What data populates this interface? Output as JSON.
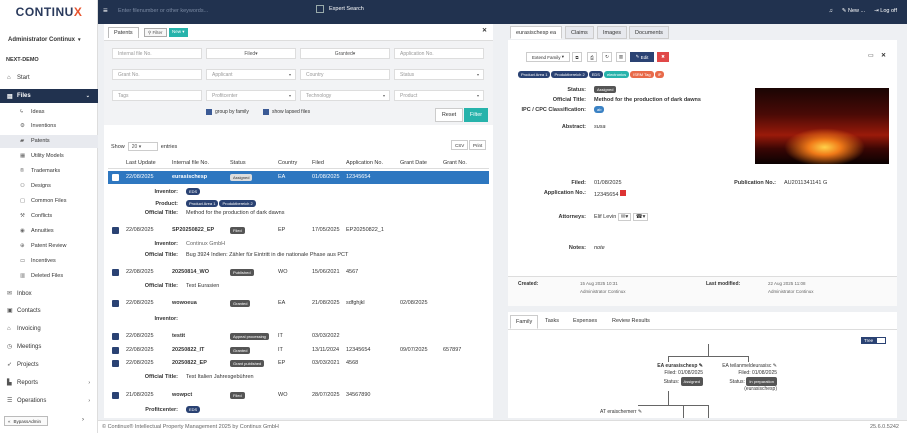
{
  "brand": {
    "name_a": "CONTINU",
    "name_b": "X"
  },
  "user": {
    "name": "Administrator Continux"
  },
  "org": "NEXT-DEMO",
  "nav": {
    "start": "Start",
    "files": "Files",
    "inbox": "Inbox",
    "contacts": "Contacts",
    "invoicing": "Invoicing",
    "meetings": "Meetings",
    "projects": "Projects",
    "reports": "Reports",
    "operations": "Operations",
    "bypass": "BypassAdmin"
  },
  "files_sub": [
    "Ideas",
    "Inventions",
    "Patents",
    "Utility Models",
    "Trademarks",
    "Designs",
    "Common Files",
    "Conflicts",
    "Annuities",
    "Patent Review",
    "Incentives",
    "Deleted Files"
  ],
  "topbar": {
    "search_placeholder": "Enter filenumber or other keywords...",
    "expert": "Expert Search",
    "new": "New ...",
    "logoff": "Log off"
  },
  "left": {
    "tab": "Patents",
    "filter_btn": "Filter",
    "new_btn": "New",
    "filters": {
      "internal_file_no": "Internal file No.",
      "filed": "Filed",
      "granted": "Granted",
      "application_no": "Application No.",
      "grant_no": "Grant No.",
      "applicant": "Applicant",
      "country": "Country",
      "status": "Status",
      "tags": "Tags",
      "profitcenter": "Profitcenter",
      "technology": "Technology",
      "product": "Product",
      "group_by_family": "group by family",
      "show_lapsed": "show lapsed files",
      "reset": "Reset",
      "filter": "Filter"
    },
    "show": "Show",
    "show_count": "20",
    "entries": "entries",
    "csv": "CSV",
    "print": "Print",
    "columns": [
      "Last Update",
      "Internal file No.",
      "Status",
      "Country",
      "Filed",
      "Application No.",
      "Grant Date",
      "Grant No."
    ],
    "rows": [
      {
        "date": "22/08/2025",
        "file": "eurasischesp",
        "status": "Assigned",
        "country": "EA",
        "filed": "01/08/2025",
        "app": "12345654",
        "gdate": "",
        "gno": ""
      },
      {
        "date": "22/08/2025",
        "file": "SP20250822_EP",
        "status": "Filed",
        "country": "EP",
        "filed": "17/05/2025",
        "app": "EP20250822_1",
        "gdate": "",
        "gno": ""
      },
      {
        "date": "22/08/2025",
        "file": "20250814_WO",
        "status": "Published",
        "country": "WO",
        "filed": "15/06/2021",
        "app": "4567",
        "gdate": "",
        "gno": ""
      },
      {
        "date": "22/08/2025",
        "file": "wowoeua",
        "status": "Granted",
        "country": "EA",
        "filed": "21/08/2025",
        "app": "sdfghjkl",
        "gdate": "02/08/2025",
        "gno": ""
      },
      {
        "date": "22/08/2025",
        "file": "testit",
        "status": "Appeal processing",
        "country": "IT",
        "filed": "03/03/2022",
        "app": "",
        "gdate": "",
        "gno": ""
      },
      {
        "date": "22/08/2025",
        "file": "20250822_IT",
        "status": "Granted",
        "country": "IT",
        "filed": "13/11/2024",
        "app": "12345654",
        "gdate": "09/07/2025",
        "gno": "657897"
      },
      {
        "date": "22/08/2025",
        "file": "20250822_EP",
        "status": "Grant published",
        "country": "EP",
        "filed": "03/03/2021",
        "app": "4568",
        "gdate": "",
        "gno": ""
      },
      {
        "date": "21/08/2025",
        "file": "wowpct",
        "status": "Filed",
        "country": "WO",
        "filed": "28/07/2025",
        "app": "34567890",
        "gdate": "",
        "gno": ""
      }
    ],
    "details": {
      "inventor_lbl": "Inventor:",
      "product_lbl": "Product:",
      "official_title_lbl": "Official Title:",
      "profitcenter_lbl": "Profitcenter:",
      "r1_inventor": "EDS",
      "r1_product_a": "Product Area 1",
      "r1_product_b": "Produktbereich 2",
      "r1_title": "Method for the production of dark dawns",
      "r2_inventor": "Continux GmbH",
      "r2_title": "Bug 3924 Indien: Zähler für Eintritt in die nationale Phase aus PCT",
      "r3_title": "Test Eurasien",
      "r7_title": "Test Italien Jahresgebühren",
      "r8_profit": "EDS"
    }
  },
  "right": {
    "tabs": [
      "eurasischesp ea",
      "Claims",
      "Images",
      "Documents"
    ],
    "extend_family": "Extend Family",
    "edit": "Edit",
    "tags": [
      {
        "t": "Product Area 1",
        "c": "#2a4273"
      },
      {
        "t": "Produktbereich 2",
        "c": "#2a4273"
      },
      {
        "t": "EDS",
        "c": "#2a4273"
      },
      {
        "t": "electronics",
        "c": "#27b3ab"
      },
      {
        "t": "ISRM Tag",
        "c": "#e86a4a"
      },
      {
        "t": "IP",
        "c": "#e86a4a"
      }
    ],
    "status_lbl": "Status:",
    "status_val": "Assigned",
    "official_title_lbl": "Official Title:",
    "official_title": "Method for the production of dark dawns",
    "ipc_lbl": "IPC / CPC Classification:",
    "ipc_val": "ab",
    "abstract_lbl": "Abstract:",
    "abstract_val": "susa",
    "filed_lbl": "Filed:",
    "filed_val": "01/08/2025",
    "appno_lbl": "Application No.:",
    "appno_val": "12345654",
    "pubno_lbl": "Publication No.:",
    "pubno_val": "AU2011341141",
    "attorneys_lbl": "Attorneys:",
    "attorneys_val": "Elif Levin",
    "notes_lbl": "Notes:",
    "notes_val": "note",
    "created_lbl": "Created:",
    "created_date": "15 Aug 2025 10:31",
    "created_by": "Administrator Continux",
    "modified_lbl": "Last modified:",
    "modified_date": "22 Aug 2025 11:08",
    "modified_by": "Administrator Continux"
  },
  "family": {
    "tabs": [
      "Family",
      "Tasks",
      "Expenses",
      "Review Results"
    ],
    "tree": "Tree",
    "node1": {
      "title": "EA eurasischesp",
      "filed": "Filed: 01/08/2025",
      "status_lbl": "Status:",
      "status": "Assigned"
    },
    "node2": {
      "title": "EA teilanmeldeurasisc",
      "filed": "Filed: 01/08/2025",
      "status_lbl": "Status:",
      "status": "In preparation",
      "parent": "(eurasischesp)"
    },
    "node3": {
      "title": "AT eraischemerr"
    }
  },
  "footer": {
    "copyright": "© Continux® Intellectual Property Management 2025 by Continux GmbH",
    "version": "25.6.0.5242"
  }
}
